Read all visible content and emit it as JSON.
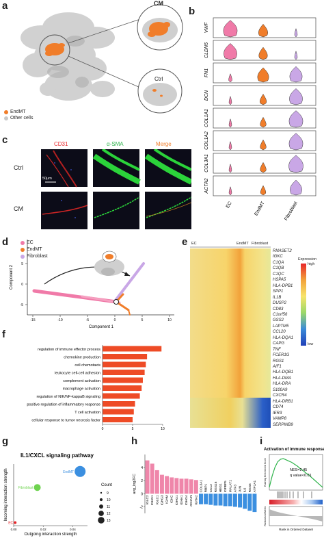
{
  "panels": {
    "a": {
      "letter": "a",
      "zoom_labels": [
        "CM",
        "Ctrl"
      ],
      "legend": [
        {
          "label": "EndMT",
          "color": "#f07d2a"
        },
        {
          "label": "Other cells",
          "color": "#c8c8c8"
        }
      ]
    },
    "b": {
      "letter": "b",
      "genes": [
        "VWF",
        "CLDN5",
        "FN1",
        "DCN",
        "COL1A1",
        "COL1A2",
        "COL3A1",
        "ACTA2"
      ],
      "groups": [
        "EC",
        "EndMT",
        "Fibroblast"
      ],
      "colors": [
        "#f07aa8",
        "#f07d2a",
        "#c9a7e6"
      ],
      "levels": [
        [
          0.9,
          0.55,
          0.05
        ],
        [
          0.85,
          0.5,
          0.05
        ],
        [
          0.1,
          0.7,
          0.8
        ],
        [
          0.05,
          0.35,
          0.85
        ],
        [
          0.05,
          0.3,
          0.9
        ],
        [
          0.05,
          0.3,
          0.9
        ],
        [
          0.05,
          0.3,
          0.95
        ],
        [
          0.05,
          0.25,
          0.75
        ]
      ]
    },
    "c": {
      "letter": "c",
      "columns": [
        "CD31",
        "α-SMA",
        "Merge"
      ],
      "column_colors": [
        "#e8262a",
        "#2db34a",
        "#f07d2a"
      ],
      "rows": [
        "Ctrl",
        "CM"
      ],
      "scale_bar": "50μm"
    },
    "d": {
      "letter": "d",
      "legend": [
        {
          "label": "EC",
          "color": "#f07aa8"
        },
        {
          "label": "EndMT",
          "color": "#f07d2a"
        },
        {
          "label": "Fibroblast",
          "color": "#c9a7e6"
        }
      ],
      "xlabel": "Component 1",
      "ylabel": "Component 2",
      "xticks": [
        "-15",
        "-10",
        "-5",
        "0",
        "5",
        "10"
      ],
      "yticks": [
        "5",
        "0",
        "-5"
      ]
    },
    "e": {
      "letter": "e",
      "groups": [
        "EC",
        "EndMT",
        "Fibroblast"
      ],
      "legend_title": "Expression",
      "legend_high": "high",
      "legend_low": "low",
      "genes": [
        "RNASET2",
        "IGKC",
        "C1QA",
        "C1QB",
        "C1QC",
        "HSPA5",
        "HLA-DPB1",
        "SPP1",
        "IL1B",
        "DUSP2",
        "CD83",
        "C1orf56",
        "GSS2",
        "LAPTM5",
        "CCL20",
        "HLA-DQA1",
        "CAPG",
        "TNF",
        "FCER1G",
        "RGS1",
        "AIF1",
        "HLA-DQB1",
        "HLA-DMA",
        "HLA-DRA",
        "S100A9",
        "CXCR4",
        "HLA-DRB1",
        "CD74",
        "IER3",
        "VAMP8",
        "SERPINB9"
      ]
    },
    "f": {
      "letter": "f",
      "xlabel": "-Log10(p value)"
    },
    "g": {
      "letter": "g",
      "title": "IL1/CXCL signaling pathway",
      "xlabel": "Outgoing interaction strength",
      "ylabel": "Incoming interaction strength",
      "size_legend_title": "Count",
      "size_legend": [
        "9",
        "10",
        "11",
        "12",
        "13"
      ],
      "xticks": [
        "0.00",
        "0.02",
        "0.04"
      ]
    },
    "h": {
      "letter": "h",
      "ylabel": "avg_log2FC",
      "yticks": [
        "4",
        "2",
        "0",
        "-2"
      ]
    },
    "i": {
      "letter": "i",
      "title": "Activation of immune response",
      "nes": "NES=2.45",
      "qval": "q value<0.01",
      "ylabel_top": "Running Enrichment Score",
      "ylabel_bottom": "Ranked List Metric",
      "xlabel": "Rank in Ordered Dataset"
    }
  },
  "chart_data": [
    {
      "type": "bar",
      "panel": "f",
      "categories": [
        "regulation of immune effector process",
        "chemokine production",
        "cell chemotaxis",
        "leukocyte cell-cell adhesion",
        "complement activation",
        "macrophage activation",
        "regulation of NIK/NF-kappaB signaling",
        "positive regulation of inflammatory response",
        "T cell activation",
        "cellular response to tumor necrosis factor"
      ],
      "values": [
        9.8,
        7.4,
        7.2,
        7.0,
        6.7,
        6.5,
        6.2,
        5.4,
        5.2,
        5.0
      ],
      "xlabel": "-Log10(p value)",
      "xlim": [
        0,
        10
      ],
      "xticks": [
        "0",
        "5",
        "10"
      ],
      "color": "#ee4b26"
    },
    {
      "type": "scatter",
      "panel": "g",
      "title": "IL1/CXCL signaling pathway",
      "points": [
        {
          "label": "EndMT",
          "x": 0.045,
          "y": 0.88,
          "count": 13,
          "color": "#3b8fe0"
        },
        {
          "label": "Fibroblast",
          "x": 0.016,
          "y": 0.62,
          "count": 11,
          "color": "#6ed34f"
        },
        {
          "label": "EC",
          "x": 0.001,
          "y": 0.05,
          "count": 9,
          "color": "#e8262a"
        }
      ],
      "xlabel": "Outgoing interaction strength",
      "ylabel": "Incoming interaction strength",
      "xlim": [
        0,
        0.05
      ],
      "ylim": [
        0,
        1
      ]
    },
    {
      "type": "bar",
      "panel": "h",
      "categories": [
        "IGLC2",
        "IGHG1",
        "IGLC1",
        "IGHG3",
        "IGHM",
        "IGKC",
        "IGHG1",
        "IGHA1",
        "IGHG4",
        "JCHAIN",
        "IGHA2",
        "COL3A1",
        "RBP1",
        "CCL2",
        "RGS16",
        "HEG1",
        "IGFBP5",
        "MALAT1",
        "ATF3",
        "JUN",
        "IL6",
        "RGS5",
        "ATP1A1"
      ],
      "values": [
        5.1,
        4.6,
        3.6,
        2.9,
        2.7,
        2.5,
        2.4,
        2.3,
        2.3,
        2.2,
        2.1,
        -1.6,
        -1.6,
        -1.7,
        -1.8,
        -1.8,
        -1.9,
        -1.9,
        -2.0,
        -2.1,
        -2.3,
        -2.6,
        -2.8
      ],
      "ylabel": "avg_log2FC",
      "ylim": [
        -3,
        6
      ],
      "colors": {
        "positive": "#ef86aa",
        "negative": "#3b8fe0"
      }
    },
    {
      "type": "line",
      "panel": "i",
      "title": "Activation of immune response",
      "series": [
        {
          "name": "Running Enrichment Score",
          "values": [
            0.0,
            0.18,
            0.32,
            0.41,
            0.45,
            0.46,
            0.44,
            0.42,
            0.4,
            0.37,
            0.34,
            0.3,
            0.27,
            0.23,
            0.2,
            0.16,
            0.12,
            0.08,
            0.04,
            0.0
          ],
          "color": "#2db34a"
        }
      ],
      "ylabel": "Running Enrichment Score"
    }
  ]
}
